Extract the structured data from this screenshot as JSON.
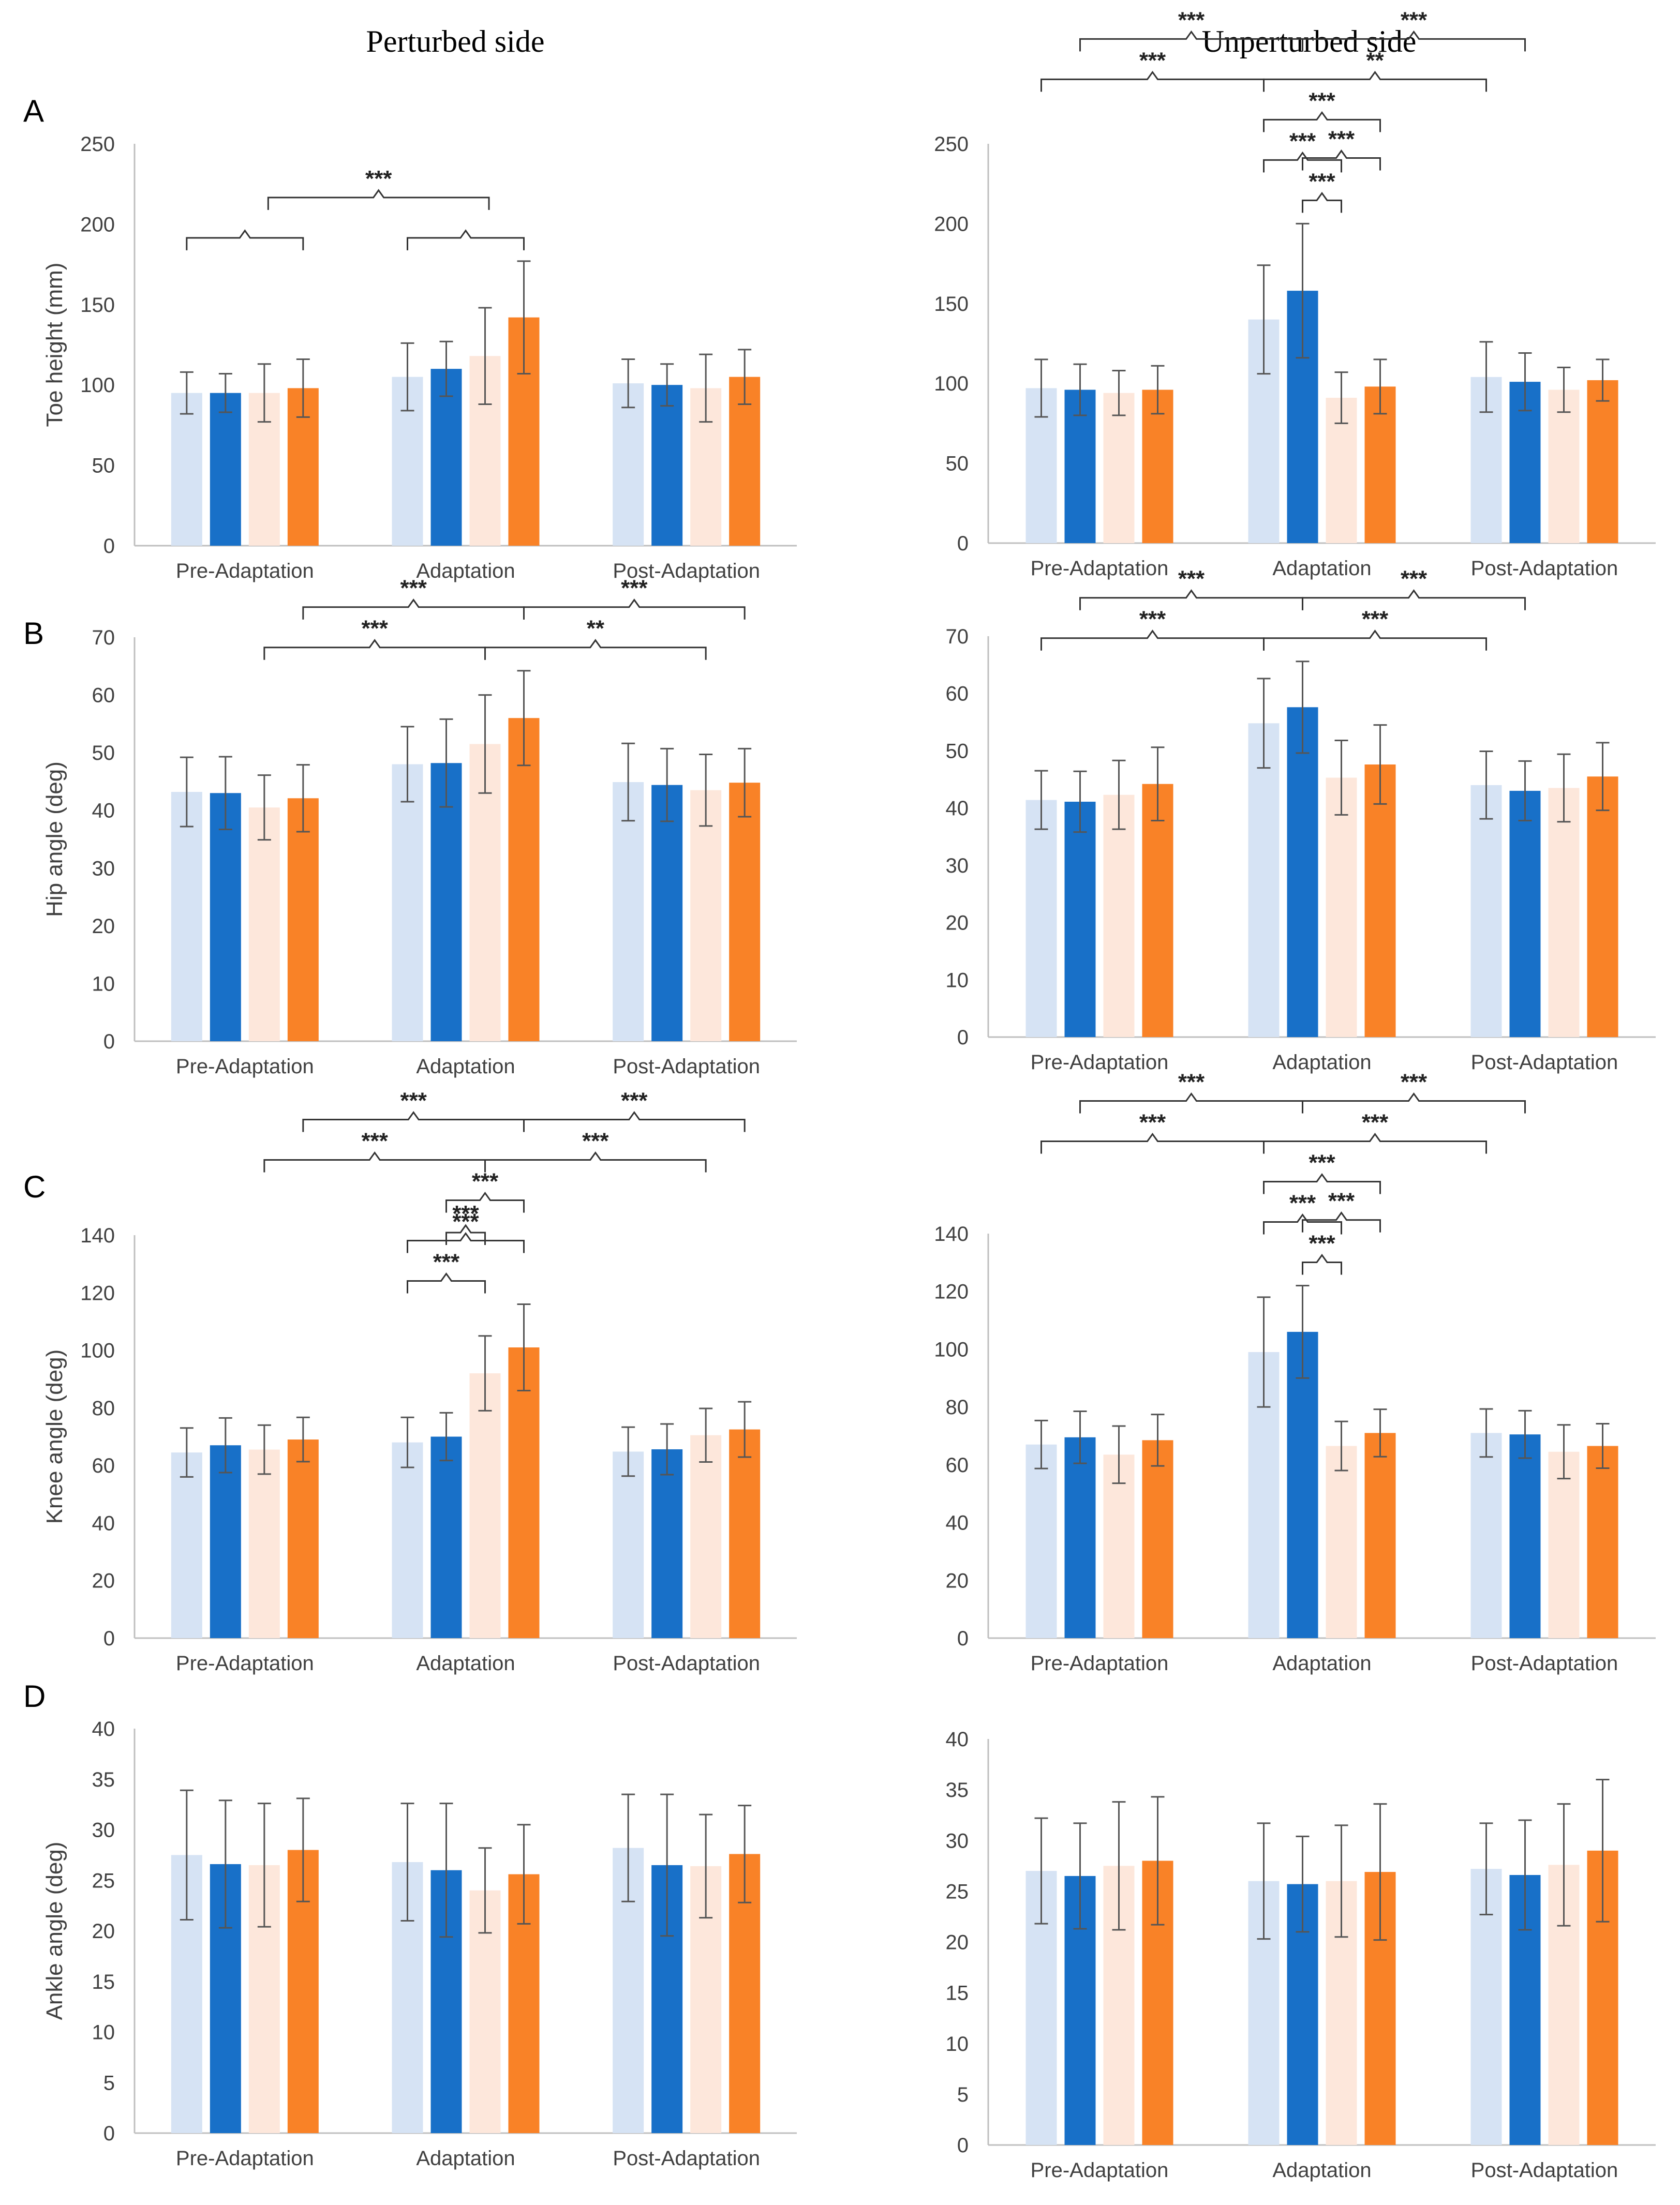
{
  "figure": {
    "col_titles": [
      "Perturbed side",
      "Unperturbed side"
    ],
    "row_letters": [
      "A",
      "B",
      "C",
      "D"
    ]
  },
  "colors": [
    "#d6e3f4",
    "#1870c8",
    "#fde7db",
    "#f98227"
  ],
  "chart_data": [
    {
      "type": "bar",
      "panel": "A",
      "side": "Perturbed side",
      "ylabel": "Toe height (mm)",
      "ylim": [
        0,
        250
      ],
      "ytick_step": 50,
      "categories": [
        "Pre-Adaptation",
        "Adaptation",
        "Post-Adaptation"
      ],
      "series": [
        {
          "values": [
            95,
            105,
            101
          ],
          "err": [
            13,
            21,
            15
          ]
        },
        {
          "values": [
            95,
            110,
            100
          ],
          "err": [
            12,
            17,
            13
          ]
        },
        {
          "values": [
            95,
            118,
            98
          ],
          "err": [
            18,
            30,
            21
          ]
        },
        {
          "values": [
            98,
            142,
            105
          ],
          "err": [
            18,
            35,
            17
          ]
        }
      ],
      "significance": [
        {
          "label": "",
          "from": [
            0,
            0
          ],
          "to": [
            0,
            3
          ],
          "level": 0
        },
        {
          "label": "",
          "from": [
            1,
            0
          ],
          "to": [
            1,
            3
          ],
          "level": 0
        },
        {
          "label": "***",
          "from": [
            0,
            2.1
          ],
          "to": [
            1,
            2.1
          ],
          "level": 1
        }
      ]
    },
    {
      "type": "bar",
      "panel": "A",
      "side": "Unperturbed side",
      "ylabel": "",
      "ylim": [
        0,
        250
      ],
      "ytick_step": 50,
      "categories": [
        "Pre-Adaptation",
        "Adaptation",
        "Post-Adaptation"
      ],
      "series": [
        {
          "values": [
            97,
            140,
            104
          ],
          "err": [
            18,
            34,
            22
          ]
        },
        {
          "values": [
            96,
            158,
            101
          ],
          "err": [
            16,
            42,
            18
          ]
        },
        {
          "values": [
            94,
            91,
            96
          ],
          "err": [
            14,
            16,
            14
          ]
        },
        {
          "values": [
            96,
            98,
            102
          ],
          "err": [
            15,
            17,
            13
          ]
        }
      ],
      "significance": [
        {
          "label": "***",
          "from": [
            1,
            1
          ],
          "to": [
            1,
            2
          ],
          "level": 0
        },
        {
          "label": "***",
          "from": [
            1,
            0
          ],
          "to": [
            1,
            2
          ],
          "level": 1
        },
        {
          "label": "***",
          "from": [
            1,
            1
          ],
          "to": [
            1,
            3
          ],
          "level": 1.05
        },
        {
          "label": "***",
          "from": [
            1,
            0
          ],
          "to": [
            1,
            3
          ],
          "level": 2
        },
        {
          "label": "***",
          "from": [
            0,
            0
          ],
          "to": [
            1,
            0
          ],
          "level": 3
        },
        {
          "label": "**",
          "from": [
            1,
            0
          ],
          "to": [
            2,
            0
          ],
          "level": 3
        },
        {
          "label": "***",
          "from": [
            0,
            1
          ],
          "to": [
            1,
            1
          ],
          "level": 4
        },
        {
          "label": "***",
          "from": [
            1,
            1
          ],
          "to": [
            2,
            1
          ],
          "level": 4
        }
      ]
    },
    {
      "type": "bar",
      "panel": "B",
      "side": "Perturbed side",
      "ylabel": "Hip angle (deg)",
      "ylim": [
        0,
        70
      ],
      "ytick_step": 10,
      "categories": [
        "Pre-Adaptation",
        "Adaptation",
        "Post-Adaptation"
      ],
      "series": [
        {
          "values": [
            43.2,
            48.0,
            44.9
          ],
          "err": [
            6,
            6.5,
            6.7
          ]
        },
        {
          "values": [
            43.0,
            48.2,
            44.4
          ],
          "err": [
            6.3,
            7.6,
            6.3
          ]
        },
        {
          "values": [
            40.5,
            51.5,
            43.5
          ],
          "err": [
            5.6,
            8.5,
            6.2
          ]
        },
        {
          "values": [
            42.1,
            56.0,
            44.8
          ],
          "err": [
            5.8,
            8.2,
            5.9
          ]
        }
      ],
      "significance": [
        {
          "label": "***",
          "from": [
            0,
            2
          ],
          "to": [
            1,
            2
          ],
          "level": 0
        },
        {
          "label": "**",
          "from": [
            1,
            2
          ],
          "to": [
            2,
            2
          ],
          "level": 0
        },
        {
          "label": "***",
          "from": [
            0,
            3
          ],
          "to": [
            1,
            3
          ],
          "level": 1
        },
        {
          "label": "***",
          "from": [
            1,
            3
          ],
          "to": [
            2,
            3
          ],
          "level": 1
        }
      ]
    },
    {
      "type": "bar",
      "panel": "B",
      "side": "Unperturbed side",
      "ylabel": "",
      "ylim": [
        0,
        70
      ],
      "ytick_step": 10,
      "categories": [
        "Pre-Adaptation",
        "Adaptation",
        "Post-Adaptation"
      ],
      "series": [
        {
          "values": [
            41.4,
            54.8,
            44.0
          ],
          "err": [
            5.1,
            7.8,
            5.9
          ]
        },
        {
          "values": [
            41.1,
            57.6,
            43.0
          ],
          "err": [
            5.3,
            8.0,
            5.2
          ]
        },
        {
          "values": [
            42.3,
            45.3,
            43.5
          ],
          "err": [
            6.0,
            6.5,
            5.9
          ]
        },
        {
          "values": [
            44.2,
            47.6,
            45.5
          ],
          "err": [
            6.4,
            6.9,
            5.9
          ]
        }
      ],
      "significance": [
        {
          "label": "***",
          "from": [
            0,
            0
          ],
          "to": [
            1,
            0
          ],
          "level": 0
        },
        {
          "label": "***",
          "from": [
            1,
            0
          ],
          "to": [
            2,
            0
          ],
          "level": 0
        },
        {
          "label": "***",
          "from": [
            0,
            1
          ],
          "to": [
            1,
            1
          ],
          "level": 1
        },
        {
          "label": "***",
          "from": [
            1,
            1
          ],
          "to": [
            2,
            1
          ],
          "level": 1
        }
      ]
    },
    {
      "type": "bar",
      "panel": "C",
      "side": "Perturbed side",
      "ylabel": "Knee angle (deg)",
      "ylim": [
        0,
        140
      ],
      "ytick_step": 20,
      "categories": [
        "Pre-Adaptation",
        "Adaptation",
        "Post-Adaptation"
      ],
      "series": [
        {
          "values": [
            64.5,
            68.0,
            64.8
          ],
          "err": [
            8.5,
            8.7,
            8.5
          ]
        },
        {
          "values": [
            67.0,
            70.0,
            65.6
          ],
          "err": [
            9.5,
            8.3,
            8.8
          ]
        },
        {
          "values": [
            65.5,
            92.0,
            70.5
          ],
          "err": [
            8.5,
            13,
            9.3
          ]
        },
        {
          "values": [
            69.0,
            101.0,
            72.5
          ],
          "err": [
            7.7,
            15,
            9.6
          ]
        }
      ],
      "significance": [
        {
          "label": "***",
          "from": [
            1,
            0
          ],
          "to": [
            1,
            2
          ],
          "level": 0
        },
        {
          "label": "***",
          "from": [
            1,
            0
          ],
          "to": [
            1,
            3
          ],
          "level": 1
        },
        {
          "label": "***",
          "from": [
            1,
            1
          ],
          "to": [
            1,
            2
          ],
          "level": 1.2
        },
        {
          "label": "***",
          "from": [
            1,
            1
          ],
          "to": [
            1,
            3
          ],
          "level": 2
        },
        {
          "label": "***",
          "from": [
            0,
            2
          ],
          "to": [
            1,
            2
          ],
          "level": 3
        },
        {
          "label": "***",
          "from": [
            1,
            2
          ],
          "to": [
            2,
            2
          ],
          "level": 3
        },
        {
          "label": "***",
          "from": [
            0,
            3
          ],
          "to": [
            1,
            3
          ],
          "level": 4
        },
        {
          "label": "***",
          "from": [
            1,
            3
          ],
          "to": [
            2,
            3
          ],
          "level": 4
        }
      ]
    },
    {
      "type": "bar",
      "panel": "C",
      "side": "Unperturbed side",
      "ylabel": "",
      "ylim": [
        0,
        140
      ],
      "ytick_step": 20,
      "categories": [
        "Pre-Adaptation",
        "Adaptation",
        "Post-Adaptation"
      ],
      "series": [
        {
          "values": [
            67.0,
            99.0,
            71.0
          ],
          "err": [
            8.3,
            19,
            8.3
          ]
        },
        {
          "values": [
            69.5,
            106.0,
            70.5
          ],
          "err": [
            9.0,
            16,
            8.2
          ]
        },
        {
          "values": [
            63.5,
            66.5,
            64.5
          ],
          "err": [
            9.9,
            8.5,
            9.3
          ]
        },
        {
          "values": [
            68.5,
            71.0,
            66.5
          ],
          "err": [
            8.9,
            8.2,
            7.7
          ]
        }
      ],
      "significance": [
        {
          "label": "***",
          "from": [
            1,
            1
          ],
          "to": [
            1,
            2
          ],
          "level": 0
        },
        {
          "label": "***",
          "from": [
            1,
            0
          ],
          "to": [
            1,
            2
          ],
          "level": 1
        },
        {
          "label": "***",
          "from": [
            1,
            1
          ],
          "to": [
            1,
            3
          ],
          "level": 1.05
        },
        {
          "label": "***",
          "from": [
            1,
            0
          ],
          "to": [
            1,
            3
          ],
          "level": 2
        },
        {
          "label": "***",
          "from": [
            0,
            0
          ],
          "to": [
            1,
            0
          ],
          "level": 3
        },
        {
          "label": "***",
          "from": [
            1,
            0
          ],
          "to": [
            2,
            0
          ],
          "level": 3
        },
        {
          "label": "***",
          "from": [
            0,
            1
          ],
          "to": [
            1,
            1
          ],
          "level": 4
        },
        {
          "label": "***",
          "from": [
            1,
            1
          ],
          "to": [
            2,
            1
          ],
          "level": 4
        }
      ]
    },
    {
      "type": "bar",
      "panel": "D",
      "side": "Perturbed side",
      "ylabel": "Ankle angle (deg)",
      "ylim": [
        0,
        40
      ],
      "ytick_step": 5,
      "categories": [
        "Pre-Adaptation",
        "Adaptation",
        "Post-Adaptation"
      ],
      "series": [
        {
          "values": [
            27.5,
            26.8,
            28.2
          ],
          "err": [
            6.4,
            5.8,
            5.3
          ]
        },
        {
          "values": [
            26.6,
            26.0,
            26.5
          ],
          "err": [
            6.3,
            6.6,
            7.0
          ]
        },
        {
          "values": [
            26.5,
            24.0,
            26.4
          ],
          "err": [
            6.1,
            4.2,
            5.1
          ]
        },
        {
          "values": [
            28.0,
            25.6,
            27.6
          ],
          "err": [
            5.1,
            4.9,
            4.8
          ]
        }
      ],
      "significance": []
    },
    {
      "type": "bar",
      "panel": "D",
      "side": "Unperturbed side",
      "ylabel": "",
      "ylim": [
        0,
        40
      ],
      "ytick_step": 5,
      "categories": [
        "Pre-Adaptation",
        "Adaptation",
        "Post-Adaptation"
      ],
      "series": [
        {
          "values": [
            27.0,
            26.0,
            27.2
          ],
          "err": [
            5.2,
            5.7,
            4.5
          ]
        },
        {
          "values": [
            26.5,
            25.7,
            26.6
          ],
          "err": [
            5.2,
            4.7,
            5.4
          ]
        },
        {
          "values": [
            27.5,
            26.0,
            27.6
          ],
          "err": [
            6.3,
            5.5,
            6.0
          ]
        },
        {
          "values": [
            28.0,
            26.9,
            29.0
          ],
          "err": [
            6.3,
            6.7,
            7.0
          ]
        }
      ],
      "significance": []
    }
  ]
}
